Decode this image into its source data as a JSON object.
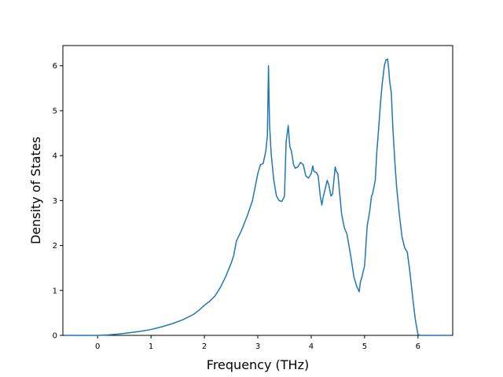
{
  "chart_data": {
    "type": "line",
    "title": "",
    "xlabel": "Frequency (THz)",
    "ylabel": "Density of States",
    "xlim": [
      -0.65,
      6.65
    ],
    "ylim": [
      0,
      6.45
    ],
    "xticks": [
      0,
      1,
      2,
      3,
      4,
      5,
      6
    ],
    "yticks": [
      0,
      1,
      2,
      3,
      4,
      5,
      6
    ],
    "grid": false,
    "legend": "none",
    "series": [
      {
        "color": "#1f77b4",
        "x": [
          -0.6,
          -0.3,
          0.0,
          0.2,
          0.4,
          0.6,
          0.8,
          1.0,
          1.2,
          1.4,
          1.6,
          1.8,
          1.9,
          2.0,
          2.1,
          2.2,
          2.3,
          2.4,
          2.5,
          2.55,
          2.6,
          2.7,
          2.8,
          2.9,
          2.95,
          3.0,
          3.05,
          3.1,
          3.15,
          3.18,
          3.2,
          3.22,
          3.25,
          3.3,
          3.35,
          3.4,
          3.45,
          3.5,
          3.53,
          3.57,
          3.6,
          3.63,
          3.67,
          3.7,
          3.75,
          3.8,
          3.85,
          3.9,
          3.95,
          4.0,
          4.03,
          4.05,
          4.1,
          4.13,
          4.17,
          4.2,
          4.22,
          4.25,
          4.3,
          4.33,
          4.37,
          4.4,
          4.45,
          4.47,
          4.5,
          4.53,
          4.57,
          4.62,
          4.67,
          4.7,
          4.75,
          4.8,
          4.85,
          4.9,
          4.92,
          4.95,
          5.0,
          5.03,
          5.05,
          5.08,
          5.1,
          5.13,
          5.15,
          5.2,
          5.23,
          5.25,
          5.3,
          5.33,
          5.37,
          5.4,
          5.43,
          5.45,
          5.47,
          5.5,
          5.53,
          5.57,
          5.6,
          5.65,
          5.7,
          5.75,
          5.8,
          5.85,
          5.9,
          5.95,
          5.98,
          6.0,
          6.05,
          6.2,
          6.4,
          6.6
        ],
        "y": [
          0,
          0,
          0,
          0.01,
          0.03,
          0.06,
          0.09,
          0.13,
          0.19,
          0.26,
          0.35,
          0.47,
          0.56,
          0.67,
          0.76,
          0.88,
          1.07,
          1.31,
          1.6,
          1.78,
          2.1,
          2.35,
          2.65,
          3.0,
          3.3,
          3.6,
          3.8,
          3.82,
          4.1,
          4.45,
          6.0,
          4.7,
          4.05,
          3.45,
          3.1,
          3.0,
          2.98,
          3.1,
          4.3,
          4.67,
          4.2,
          4.1,
          3.8,
          3.72,
          3.75,
          3.85,
          3.8,
          3.55,
          3.5,
          3.6,
          3.77,
          3.65,
          3.62,
          3.55,
          3.1,
          2.9,
          3.05,
          3.2,
          3.45,
          3.35,
          3.1,
          3.15,
          3.75,
          3.65,
          3.6,
          3.2,
          2.7,
          2.4,
          2.25,
          2.05,
          1.7,
          1.3,
          1.1,
          0.97,
          1.18,
          1.3,
          1.55,
          2.1,
          2.45,
          2.65,
          2.8,
          3.1,
          3.15,
          3.45,
          4.1,
          4.4,
          5.2,
          5.6,
          6.0,
          6.13,
          6.15,
          5.95,
          5.65,
          5.4,
          4.6,
          3.8,
          3.3,
          2.7,
          2.2,
          1.95,
          1.85,
          1.4,
          0.85,
          0.35,
          0.15,
          0.02,
          0,
          0,
          0,
          0
        ]
      }
    ]
  }
}
